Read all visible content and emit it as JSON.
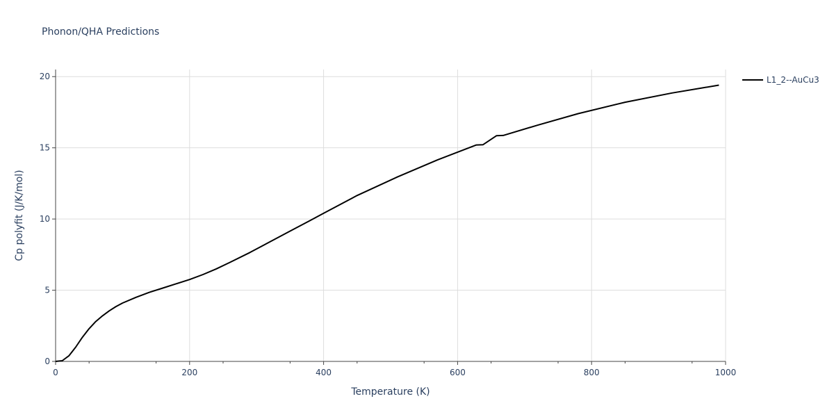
{
  "chart_data": {
    "type": "line",
    "title": "Phonon/QHA Predictions",
    "xlabel": "Temperature (K)",
    "ylabel": "Cp polyfit (J/K/mol)",
    "xlim": [
      0,
      1000
    ],
    "ylim": [
      0,
      20.5
    ],
    "xticks": [
      0,
      200,
      400,
      600,
      800,
      1000
    ],
    "yticks": [
      0,
      5,
      10,
      15,
      20
    ],
    "grid": true,
    "legend_position": "top-right",
    "series": [
      {
        "name": "L1_2--AuCu3",
        "color": "#000000",
        "x": [
          0,
          10,
          20,
          30,
          40,
          50,
          60,
          70,
          80,
          90,
          100,
          120,
          140,
          160,
          180,
          200,
          220,
          240,
          260,
          290,
          320,
          350,
          380,
          400,
          450,
          510,
          570,
          628,
          638,
          658,
          668,
          720,
          780,
          850,
          920,
          990
        ],
        "y": [
          0,
          0.05,
          0.4,
          1.0,
          1.7,
          2.3,
          2.8,
          3.2,
          3.55,
          3.85,
          4.1,
          4.5,
          4.85,
          5.15,
          5.45,
          5.75,
          6.1,
          6.5,
          6.95,
          7.65,
          8.4,
          9.15,
          9.9,
          10.4,
          11.65,
          12.95,
          14.15,
          15.2,
          15.22,
          15.85,
          15.87,
          16.6,
          17.4,
          18.2,
          18.85,
          19.4
        ]
      }
    ]
  }
}
